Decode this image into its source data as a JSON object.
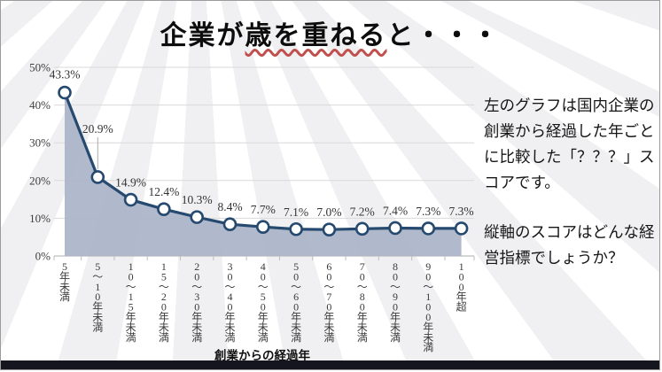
{
  "slide": {
    "title_pre": "企業が",
    "title_underlined": "歳を重ねる",
    "title_post": "と・・・"
  },
  "side_panel": {
    "para1": "左のグラフは国内企業の\n創業から経過した年ごと\nに比較した「？？？」ス\nコアです。",
    "para2": "縦軸のスコアはどんな経\n営指標でしょうか？"
  },
  "chart_data": {
    "type": "area",
    "title": "",
    "categories": [
      "5年未満",
      "5～10年未満",
      "10～15年未満",
      "15～20年未満",
      "20～30年未満",
      "30～40年未満",
      "40～50年未満",
      "50～60年未満",
      "60～70年未満",
      "70～80年未満",
      "80～90年未満",
      "90～100年未満",
      "100年超"
    ],
    "values": [
      43.3,
      20.9,
      14.9,
      12.4,
      10.3,
      8.4,
      7.7,
      7.1,
      7.0,
      7.2,
      7.4,
      7.3,
      7.3
    ],
    "point_labels": [
      "43.3%",
      "20.9%",
      "14.9%",
      "12.4%",
      "10.3%",
      "8.4%",
      "7.7%",
      "7.1%",
      "7.0%",
      "7.2%",
      "7.4%",
      "7.3%",
      "7.3%"
    ],
    "xlabel": "創業からの経過年",
    "ylabel": "",
    "ylim": [
      0,
      50
    ],
    "ytick_values": [
      0,
      10,
      20,
      30,
      40,
      50
    ],
    "ytick_labels": [
      "0%",
      "10%",
      "20%",
      "30%",
      "40%",
      "50%"
    ],
    "grid": true,
    "legend": "none",
    "callout_index": 1
  },
  "colors": {
    "line": "#26496f",
    "area_fill": "#aab4c8",
    "marker_fill": "#ffffff",
    "grid": "#d9d9d9",
    "axis": "#bdbdbd",
    "leader": "#aaaaaa",
    "underline": "#c0504d",
    "bottom_bar": "#15151f"
  }
}
